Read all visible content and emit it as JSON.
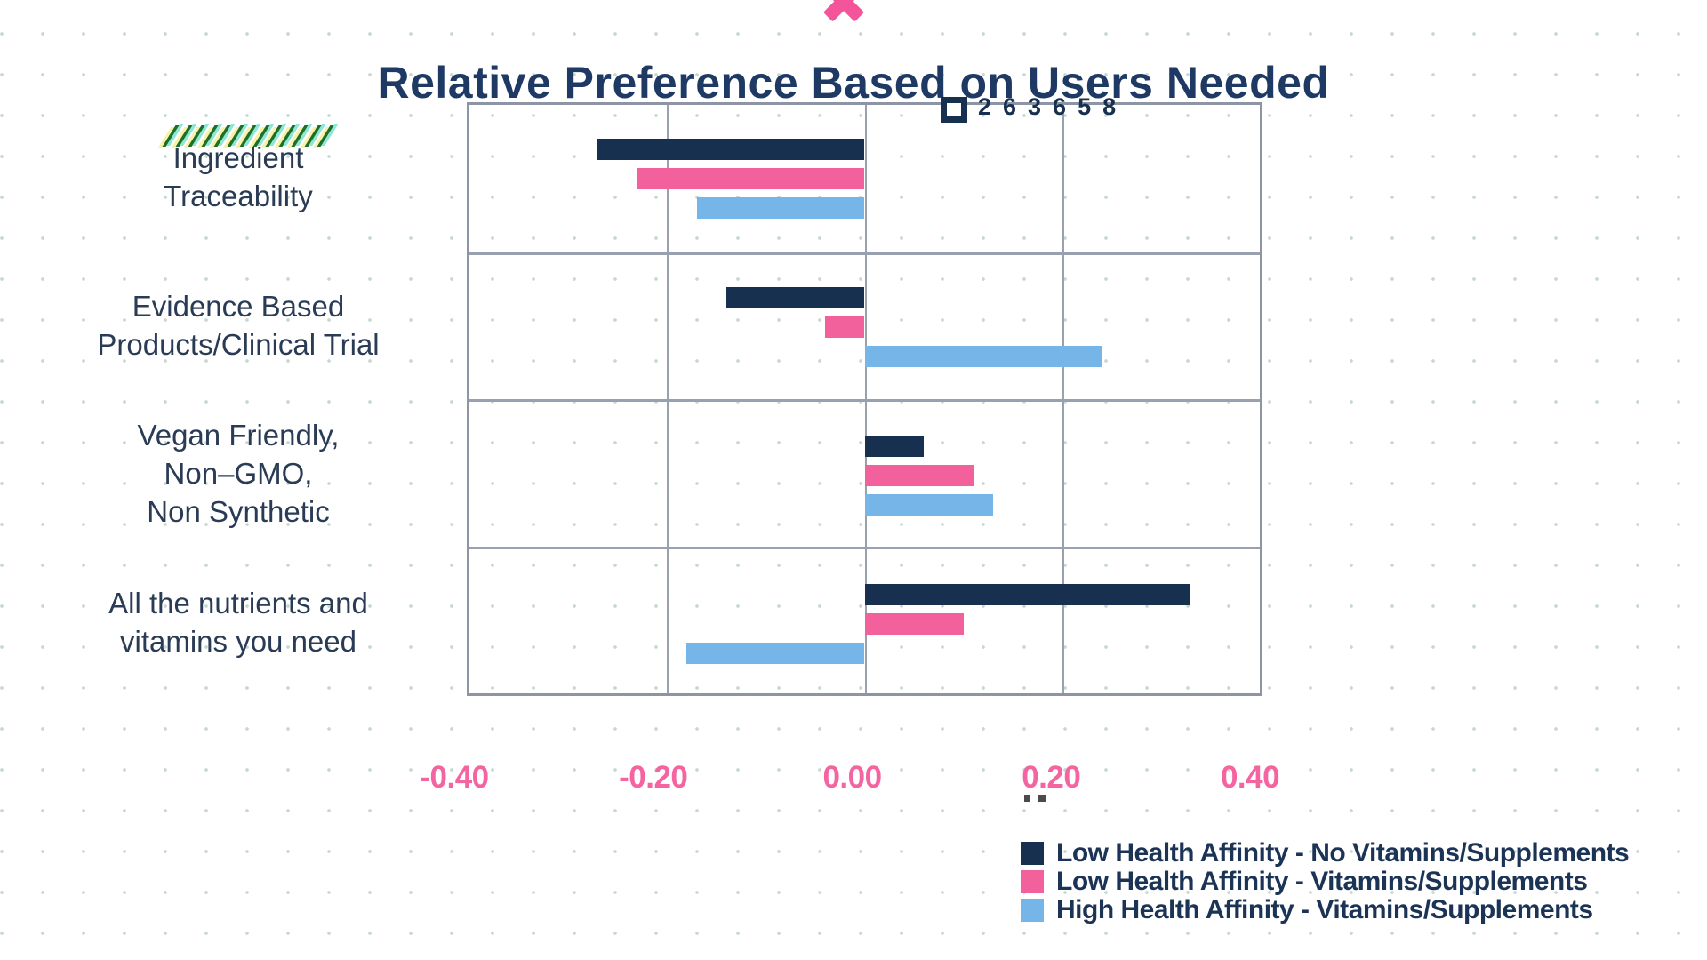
{
  "page": {
    "title": "Relative Preference Based on Users Needed",
    "overlay_value": "263658",
    "slashes_count": 13
  },
  "colors": {
    "title_navy": "#1e3a64",
    "label_navy": "#2a3b55",
    "tick_pink": "#f364a0",
    "gridline_gray": "#8d95a5",
    "slash_green": "#1d6e27",
    "background_dot": "#7daa94"
  },
  "chart_data": {
    "type": "bar",
    "orientation": "horizontal",
    "title": "Relative Preference Based on Users Needed",
    "categories": [
      [
        "Ingredient",
        "Traceability"
      ],
      [
        "Evidence Based",
        "Products/Clinical Trial"
      ],
      [
        "Vegan Friendly,",
        "Non–GMO,",
        "Non Synthetic"
      ],
      [
        "All the nutrients and",
        "vitamins you need"
      ]
    ],
    "series": [
      {
        "name": "Low Health Affinity - No Vitamins/Supplements",
        "color": "#17304f",
        "values": [
          -0.27,
          -0.14,
          0.06,
          0.33
        ]
      },
      {
        "name": "Low Health Affinity - Vitamins/Supplements",
        "color": "#f2619c",
        "values": [
          -0.23,
          -0.04,
          0.11,
          0.1
        ]
      },
      {
        "name": "High Health Affinity - Vitamins/Supplements",
        "color": "#76b5e8",
        "values": [
          -0.17,
          0.24,
          0.13,
          -0.18
        ]
      }
    ],
    "xlim": [
      -0.4,
      0.4
    ],
    "x_ticks": [
      "-0.40",
      "-0.20",
      "0.00",
      "0.20",
      "0.40"
    ],
    "grid": true,
    "legend_position": "bottom-right"
  }
}
